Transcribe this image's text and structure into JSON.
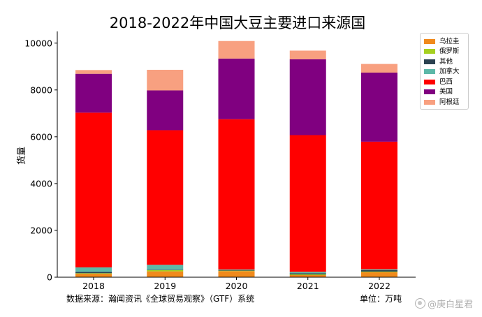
{
  "chart_data": {
    "type": "bar",
    "stacked": true,
    "title": "2018-2022年中国大豆主要进口来源国",
    "xlabel": "",
    "ylabel": "货量",
    "ylim": [
      0,
      10500
    ],
    "yticks": [
      0,
      2000,
      4000,
      6000,
      8000,
      10000
    ],
    "categories": [
      "2018",
      "2019",
      "2020",
      "2021",
      "2022"
    ],
    "grid": false,
    "legend_position": "top-right",
    "series": [
      {
        "name": "乌拉圭",
        "color": "#f08a1c",
        "values": [
          150,
          250,
          260,
          90,
          210
        ]
      },
      {
        "name": "俄罗斯",
        "color": "#a6d020",
        "values": [
          20,
          50,
          20,
          30,
          30
        ]
      },
      {
        "name": "其他",
        "color": "#2b4150",
        "values": [
          60,
          20,
          20,
          50,
          60
        ]
      },
      {
        "name": "加拿大",
        "color": "#5cb8a8",
        "values": [
          190,
          210,
          30,
          60,
          40
        ]
      },
      {
        "name": "巴西",
        "color": "#ff0000",
        "values": [
          6610,
          5750,
          6420,
          5840,
          5450
        ]
      },
      {
        "name": "美国",
        "color": "#800080",
        "values": [
          1660,
          1700,
          2590,
          3240,
          2950
        ]
      },
      {
        "name": "阿根廷",
        "color": "#f8a080",
        "values": [
          160,
          880,
          750,
          370,
          370
        ]
      }
    ]
  },
  "footer": {
    "source": "数据来源：瀚闻资讯《全球贸易观察》（GTF）系统",
    "unit": "单位：万吨"
  },
  "watermark": {
    "text": "@庚白星君"
  }
}
